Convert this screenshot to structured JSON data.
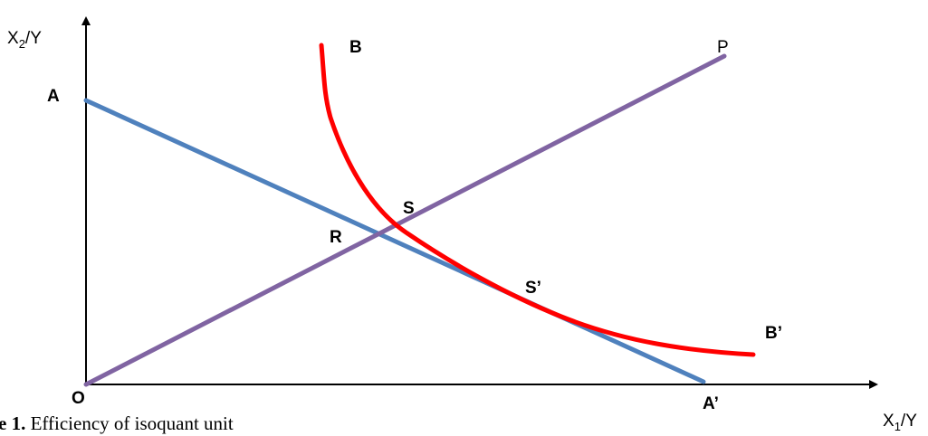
{
  "axes": {
    "y_label_base": "X",
    "y_label_sub": "2",
    "y_label_tail": "/Y",
    "x_label_base": "X",
    "x_label_sub": "1",
    "x_label_tail": "/Y",
    "origin_label": "O"
  },
  "points": {
    "a": "A",
    "a_prime": "A’",
    "b": "B",
    "b_prime": "B’",
    "p": "P",
    "r": "R",
    "s": "S",
    "s_prime": "S’"
  },
  "caption": {
    "number": "e 1.",
    "text": " Efficiency of isoquant unit"
  },
  "colors": {
    "axis": "#000000",
    "isocost_line": "#4F81BD",
    "ray_line": "#8064A2",
    "isoquant_curve": "#FF0000"
  }
}
